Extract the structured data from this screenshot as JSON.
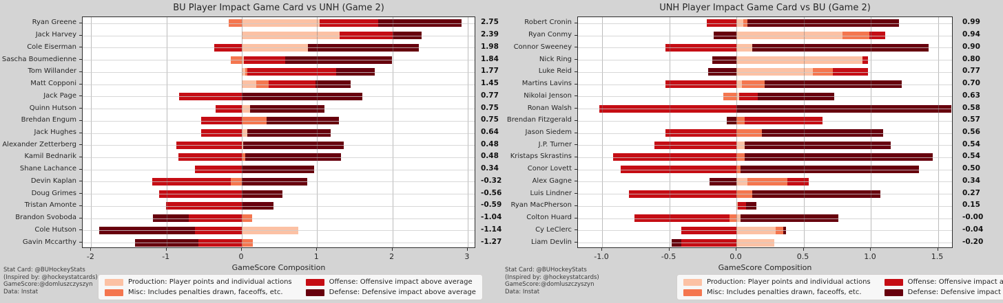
{
  "page": {
    "background": "#d4d4d4"
  },
  "colors": {
    "production": "#fcc1a4",
    "misc": "#f4764f",
    "offense": "#c50d14",
    "defense": "#67000d",
    "plot_bg": "#ffffff",
    "frame": "#2b2b2b",
    "text": "#262626"
  },
  "footer": {
    "lines": [
      "Stat Card: @BUHockeyStats",
      "(Inspired by: @hockeystatcards)",
      "GameScore:@domluszczyszyn",
      "Data: Instat"
    ]
  },
  "legend": {
    "items": [
      {
        "key": "production",
        "label": "Production: Player points and individual actions"
      },
      {
        "key": "offense",
        "label": "Offense: Offensive impact above average"
      },
      {
        "key": "misc",
        "label": "Misc: Includes penalties drawn, faceoffs, etc."
      },
      {
        "key": "defense",
        "label": "Defense: Defensive impact above average"
      }
    ]
  },
  "chart_data": [
    {
      "type": "bar",
      "orientation": "horizontal",
      "stacked": true,
      "title": "BU Player Impact Game Card vs UNH (Game 2)",
      "xlabel": "GameScore Composition",
      "xlim": [
        -2.11,
        3.12
      ],
      "grid": true,
      "series_order": [
        "production",
        "misc",
        "offense",
        "defense"
      ],
      "xticks": [
        {
          "value": -2,
          "label": "-2"
        },
        {
          "value": -1,
          "label": "-1"
        },
        {
          "value": 0,
          "label": "0"
        },
        {
          "value": 1,
          "label": "1"
        },
        {
          "value": 2,
          "label": "2"
        },
        {
          "value": 3,
          "label": "3"
        }
      ],
      "players": [
        {
          "name": "Ryan Greene",
          "production": 1.03,
          "misc": -0.17,
          "offense": 0.78,
          "defense": 1.11,
          "total": 2.75,
          "total_label": "2.75"
        },
        {
          "name": "Jack Harvey",
          "production": 1.3,
          "misc": 0,
          "offense": 0.7,
          "defense": 0.39,
          "total": 2.39,
          "total_label": "2.39"
        },
        {
          "name": "Cole Eiserman",
          "production": 0.88,
          "misc": 0,
          "offense": -0.37,
          "defense": 1.47,
          "total": 1.98,
          "total_label": "1.98"
        },
        {
          "name": "Sascha Boumedienne",
          "production": 0.03,
          "misc": -0.15,
          "offense": 0.55,
          "defense": 1.41,
          "total": 1.84,
          "total_label": "1.84"
        },
        {
          "name": "Tom Willander",
          "production": 0.05,
          "misc": 0.02,
          "offense": 1.18,
          "defense": 0.52,
          "total": 1.77,
          "total_label": "1.77"
        },
        {
          "name": "Matt Copponi",
          "production": 0.19,
          "misc": 0.17,
          "offense": 0.62,
          "defense": 0.47,
          "total": 1.45,
          "total_label": "1.45"
        },
        {
          "name": "Jack Page",
          "production": 0,
          "misc": 0,
          "offense": -0.83,
          "defense": 1.6,
          "total": 0.77,
          "total_label": "0.77"
        },
        {
          "name": "Quinn Hutson",
          "production": 0.11,
          "misc": 0,
          "offense": -0.35,
          "defense": 0.99,
          "total": 0.75,
          "total_label": "0.75"
        },
        {
          "name": "Brehdan Engum",
          "production": 0,
          "misc": 0.33,
          "offense": -0.54,
          "defense": 0.96,
          "total": 0.75,
          "total_label": "0.75"
        },
        {
          "name": "Jack Hughes",
          "production": 0.07,
          "misc": 0,
          "offense": -0.54,
          "defense": 1.11,
          "total": 0.64,
          "total_label": "0.64"
        },
        {
          "name": "Alexander Zetterberg",
          "production": 0.02,
          "misc": 0,
          "offense": -0.87,
          "defense": 1.33,
          "total": 0.48,
          "total_label": "0.48"
        },
        {
          "name": "Kamil Bednarik",
          "production": 0,
          "misc": 0.05,
          "offense": -0.84,
          "defense": 1.27,
          "total": 0.48,
          "total_label": "0.48"
        },
        {
          "name": "Shane Lachance",
          "production": 0,
          "misc": 0,
          "offense": -0.62,
          "defense": 0.96,
          "total": 0.34,
          "total_label": "0.34"
        },
        {
          "name": "Devin Kaplan",
          "production": 0,
          "misc": -0.15,
          "offense": -1.04,
          "defense": 0.87,
          "total": -0.32,
          "total_label": "-0.32"
        },
        {
          "name": "Doug Grimes",
          "production": 0,
          "misc": 0,
          "offense": -1.1,
          "defense": 0.54,
          "total": -0.56,
          "total_label": "-0.56"
        },
        {
          "name": "Tristan Amonte",
          "production": 0,
          "misc": 0,
          "offense": -1.01,
          "defense": 0.42,
          "total": -0.59,
          "total_label": "-0.59"
        },
        {
          "name": "Brandon Svoboda",
          "production": 0,
          "misc": 0.14,
          "offense": -0.7,
          "defense": -0.48,
          "total": -1.04,
          "total_label": "-1.04"
        },
        {
          "name": "Cole Hutson",
          "production": 0.75,
          "misc": 0,
          "offense": -0.62,
          "defense": -1.27,
          "total": -1.14,
          "total_label": "-1.14"
        },
        {
          "name": "Gavin Mccarthy",
          "production": 0,
          "misc": 0.15,
          "offense": -0.58,
          "defense": -0.84,
          "total": -1.27,
          "total_label": "-1.27"
        }
      ]
    },
    {
      "type": "bar",
      "orientation": "horizontal",
      "stacked": true,
      "title": "UNH Player Impact Game Card vs BU (Game 2)",
      "xlabel": "GameScore Composition",
      "xlim": [
        -1.18,
        1.62
      ],
      "grid": true,
      "series_order": [
        "production",
        "misc",
        "offense",
        "defense"
      ],
      "xticks": [
        {
          "value": -1.0,
          "label": "-1.0"
        },
        {
          "value": -0.5,
          "label": "-0.5"
        },
        {
          "value": 0.0,
          "label": "0.0"
        },
        {
          "value": 0.5,
          "label": "0.5"
        },
        {
          "value": 1.0,
          "label": "1.0"
        },
        {
          "value": 1.5,
          "label": "1.5"
        }
      ],
      "players": [
        {
          "name": "Robert Cronin",
          "production": 0.05,
          "misc": 0.03,
          "offense": -0.22,
          "defense": 1.13,
          "total": 0.99,
          "total_label": "0.99"
        },
        {
          "name": "Ryan Conmy",
          "production": 0.79,
          "misc": 0.2,
          "offense": 0.12,
          "defense": -0.17,
          "total": 0.94,
          "total_label": "0.94"
        },
        {
          "name": "Connor Sweeney",
          "production": 0.12,
          "misc": 0,
          "offense": -0.53,
          "defense": 1.31,
          "total": 0.9,
          "total_label": "0.90"
        },
        {
          "name": "Nick Ring",
          "production": 0.94,
          "misc": 0,
          "offense": 0.04,
          "defense": -0.18,
          "total": 0.8,
          "total_label": "0.80"
        },
        {
          "name": "Luke Reid",
          "production": 0.57,
          "misc": 0.15,
          "offense": 0.26,
          "defense": -0.21,
          "total": 0.77,
          "total_label": "0.77"
        },
        {
          "name": "Martins Lavins",
          "production": 0.04,
          "misc": 0.17,
          "offense": -0.53,
          "defense": 1.02,
          "total": 0.7,
          "total_label": "0.70"
        },
        {
          "name": "Nikolai Jenson",
          "production": 0.02,
          "misc": -0.1,
          "offense": 0.14,
          "defense": 0.57,
          "total": 0.63,
          "total_label": "0.63"
        },
        {
          "name": "Ronan Walsh",
          "production": 0,
          "misc": 0,
          "offense": -1.02,
          "defense": 1.6,
          "total": 0.58,
          "total_label": "0.58"
        },
        {
          "name": "Brendan Fitzgerald",
          "production": 0,
          "misc": 0.06,
          "offense": 0.58,
          "defense": -0.07,
          "total": 0.57,
          "total_label": "0.57"
        },
        {
          "name": "Jason Siedem",
          "production": 0,
          "misc": 0.19,
          "offense": -0.53,
          "defense": 0.9,
          "total": 0.56,
          "total_label": "0.56"
        },
        {
          "name": "J.P. Turner",
          "production": 0.06,
          "misc": 0,
          "offense": -0.61,
          "defense": 1.09,
          "total": 0.54,
          "total_label": "0.54"
        },
        {
          "name": "Kristaps Skrastins",
          "production": 0,
          "misc": 0.06,
          "offense": -0.92,
          "defense": 1.4,
          "total": 0.54,
          "total_label": "0.54"
        },
        {
          "name": "Conor Lovett",
          "production": 0,
          "misc": 0.03,
          "offense": -0.86,
          "defense": 1.33,
          "total": 0.5,
          "total_label": "0.50"
        },
        {
          "name": "Alex Gagne",
          "production": 0.08,
          "misc": 0.3,
          "offense": 0.16,
          "defense": -0.2,
          "total": 0.34,
          "total_label": "0.34"
        },
        {
          "name": "Luis Lindner",
          "production": 0,
          "misc": 0.12,
          "offense": -0.8,
          "defense": 0.95,
          "total": 0.27,
          "total_label": "0.27"
        },
        {
          "name": "Ryan MacPherson",
          "production": 0.01,
          "misc": 0,
          "offense": 0.06,
          "defense": 0.08,
          "total": 0.15,
          "total_label": "0.15"
        },
        {
          "name": "Colton Huard",
          "production": 0.03,
          "misc": -0.05,
          "offense": -0.71,
          "defense": 0.73,
          "total": 0.0,
          "total_label": "-0.00"
        },
        {
          "name": "Cy LeClerc",
          "production": 0.29,
          "misc": 0.06,
          "offense": -0.41,
          "defense": 0.02,
          "total": -0.04,
          "total_label": "-0.04"
        },
        {
          "name": "Liam Devlin",
          "production": 0.28,
          "misc": 0,
          "offense": -0.41,
          "defense": -0.07,
          "total": -0.2,
          "total_label": "-0.20"
        }
      ]
    }
  ]
}
